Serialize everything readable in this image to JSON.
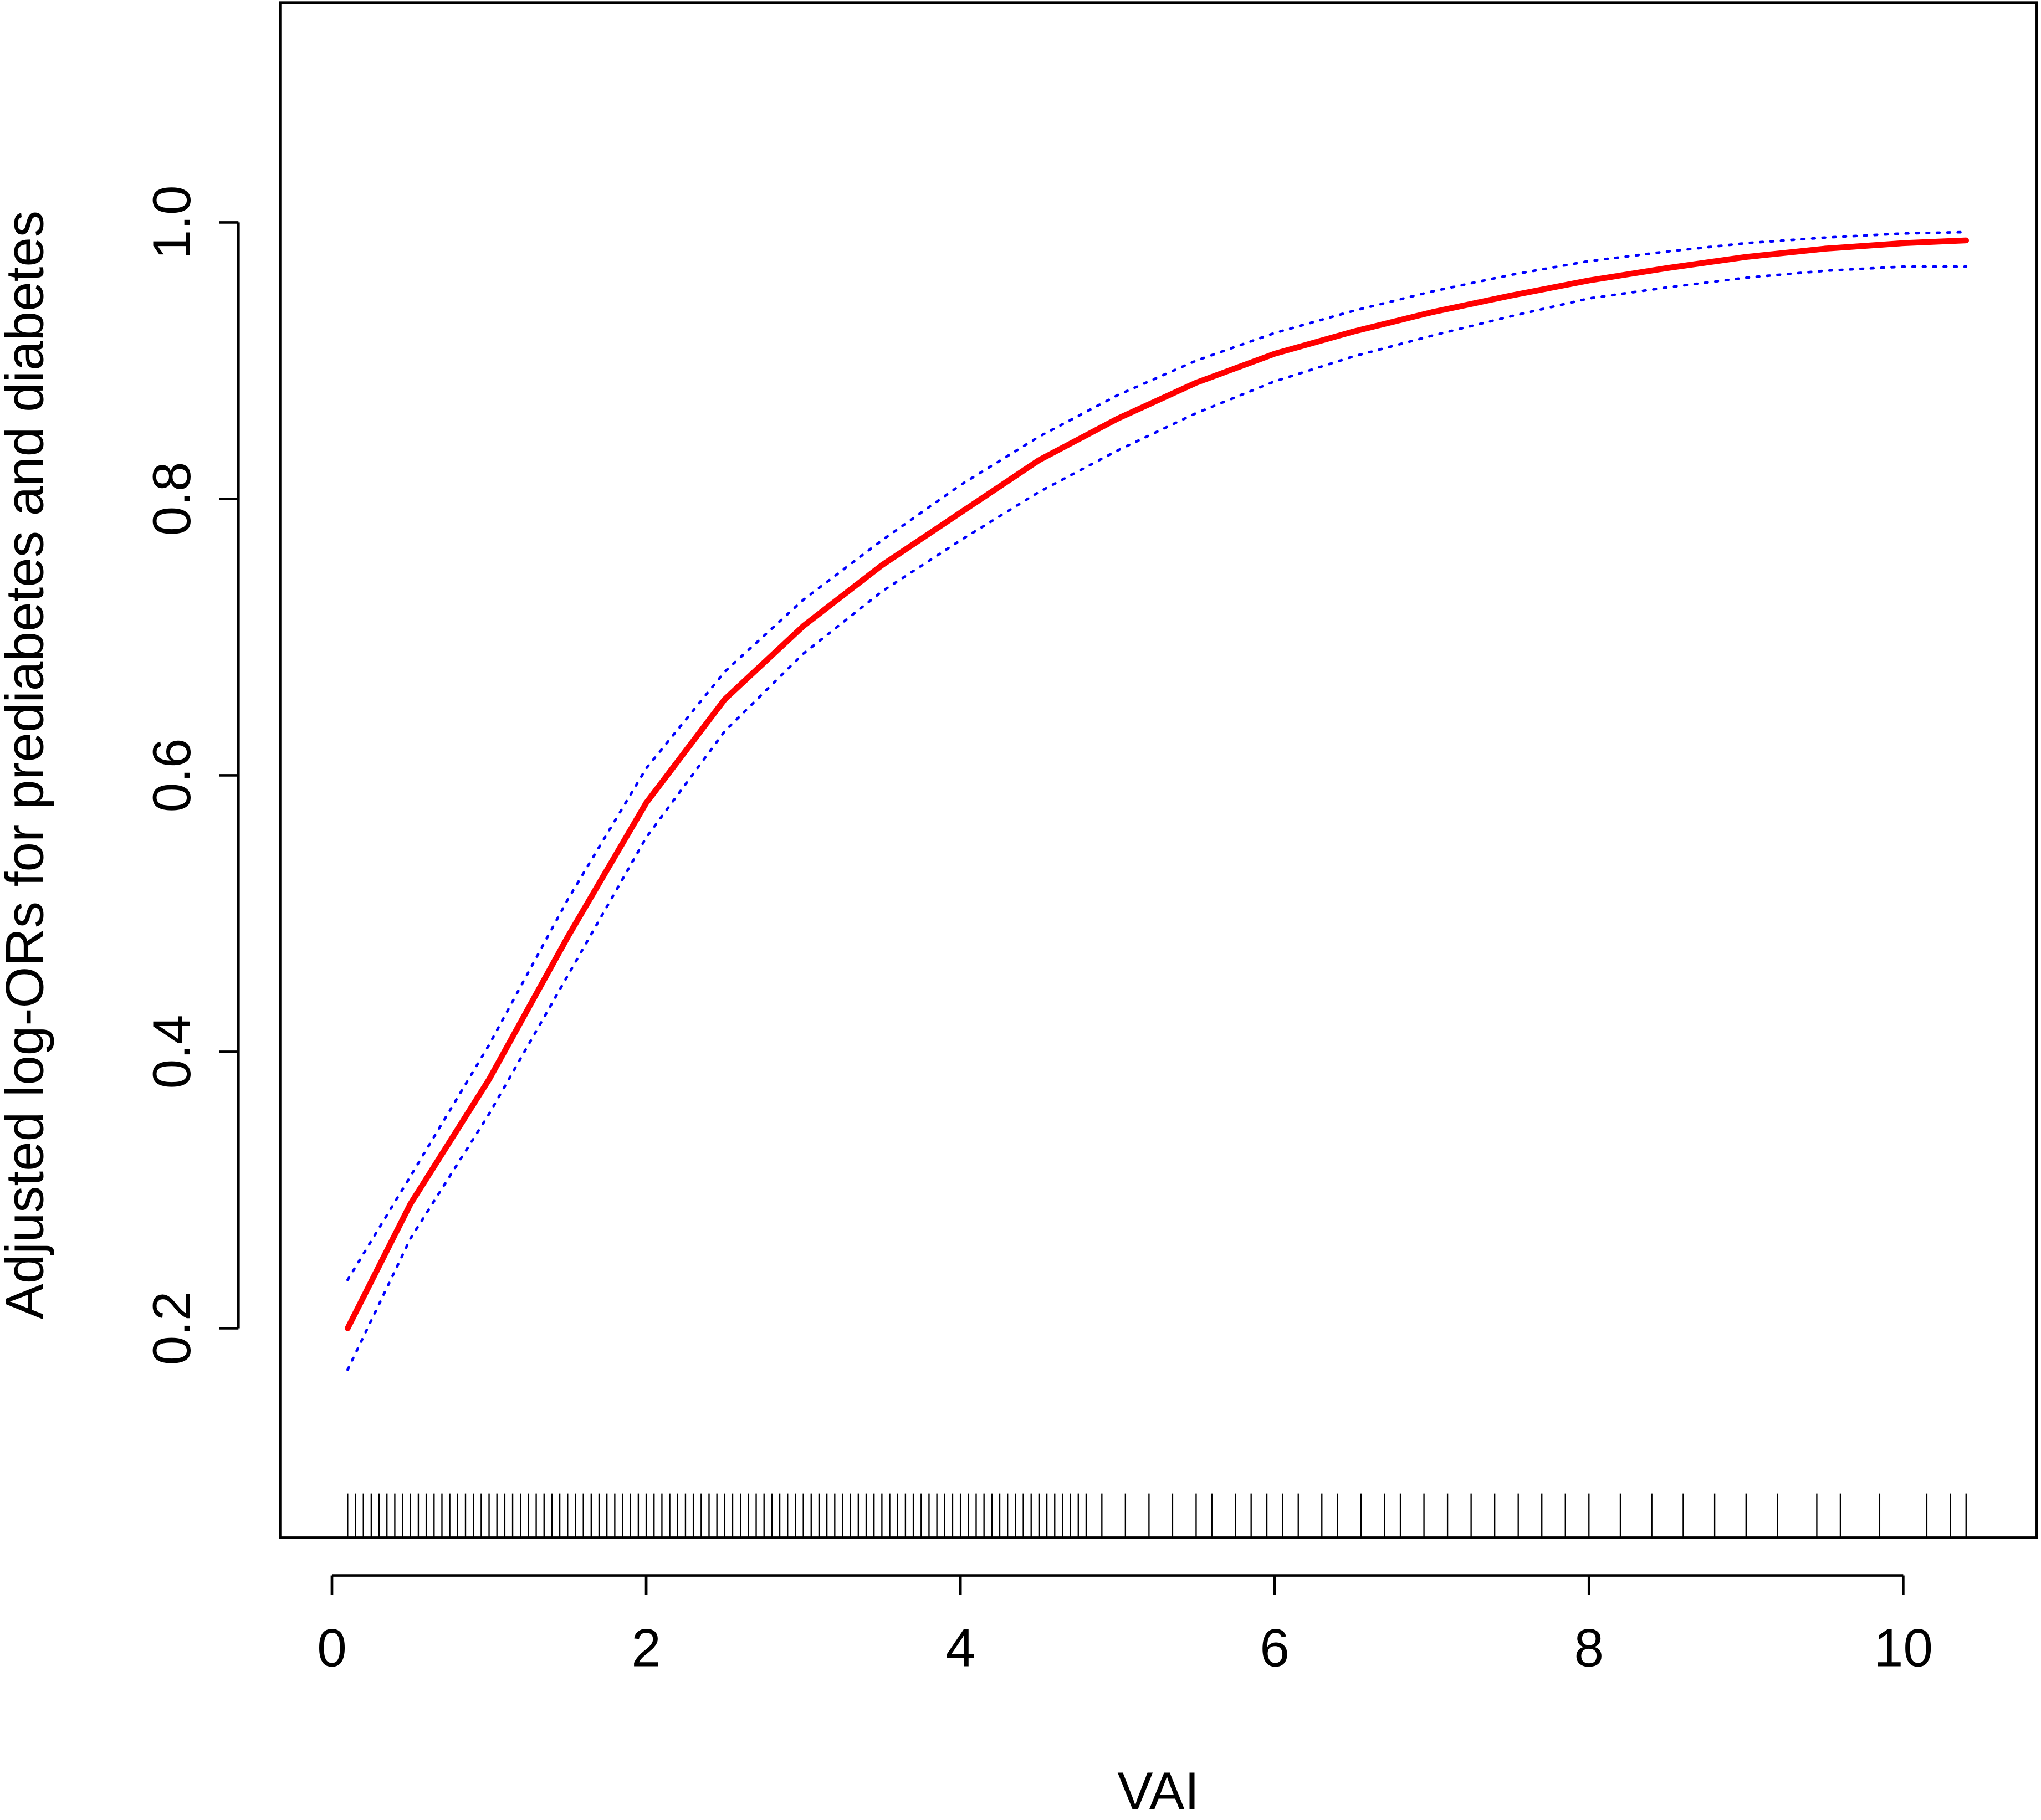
{
  "chart_data": {
    "type": "line",
    "xlabel": "VAI",
    "ylabel": "Adjusted log-ORs for prediabetes and diabetes",
    "x": [
      0.1,
      0.5,
      1,
      1.5,
      2,
      2.5,
      3,
      3.5,
      4,
      4.5,
      5,
      5.5,
      6,
      6.5,
      7,
      7.5,
      8,
      8.5,
      9,
      9.5,
      10,
      10.4
    ],
    "series": [
      {
        "color": "#ff0000",
        "style": "solid",
        "values": [
          0.2,
          0.29,
          0.38,
          0.483,
          0.58,
          0.655,
          0.708,
          0.752,
          0.79,
          0.828,
          0.858,
          0.884,
          0.905,
          0.921,
          0.935,
          0.947,
          0.958,
          0.967,
          0.975,
          0.981,
          0.985,
          0.987
        ]
      },
      {
        "color": "#0000ff",
        "style": "dotted",
        "values": [
          0.235,
          0.31,
          0.405,
          0.51,
          0.605,
          0.675,
          0.727,
          0.77,
          0.81,
          0.845,
          0.875,
          0.9,
          0.92,
          0.936,
          0.95,
          0.962,
          0.972,
          0.979,
          0.985,
          0.989,
          0.992,
          0.993
        ]
      },
      {
        "color": "#0000ff",
        "style": "dotted",
        "values": [
          0.17,
          0.265,
          0.355,
          0.455,
          0.555,
          0.632,
          0.688,
          0.733,
          0.77,
          0.805,
          0.835,
          0.862,
          0.885,
          0.903,
          0.918,
          0.932,
          0.945,
          0.953,
          0.96,
          0.965,
          0.968,
          0.968
        ]
      }
    ],
    "rug": [
      0.1,
      0.15,
      0.2,
      0.25,
      0.3,
      0.35,
      0.4,
      0.45,
      0.5,
      0.55,
      0.6,
      0.65,
      0.7,
      0.75,
      0.8,
      0.85,
      0.9,
      0.95,
      1,
      1.05,
      1.1,
      1.15,
      1.2,
      1.25,
      1.3,
      1.35,
      1.4,
      1.45,
      1.5,
      1.55,
      1.6,
      1.65,
      1.7,
      1.75,
      1.8,
      1.85,
      1.9,
      1.95,
      2,
      2.05,
      2.1,
      2.15,
      2.2,
      2.25,
      2.3,
      2.35,
      2.4,
      2.45,
      2.5,
      2.55,
      2.6,
      2.65,
      2.7,
      2.75,
      2.8,
      2.85,
      2.9,
      2.95,
      3,
      3.05,
      3.1,
      3.15,
      3.2,
      3.25,
      3.3,
      3.35,
      3.4,
      3.45,
      3.5,
      3.55,
      3.6,
      3.65,
      3.7,
      3.75,
      3.8,
      3.85,
      3.9,
      3.95,
      4,
      4.05,
      4.1,
      4.15,
      4.2,
      4.25,
      4.3,
      4.35,
      4.4,
      4.45,
      4.5,
      4.55,
      4.6,
      4.65,
      4.7,
      4.75,
      4.8,
      4.9,
      5.05,
      5.2,
      5.35,
      5.5,
      5.6,
      5.75,
      5.85,
      5.95,
      6.05,
      6.15,
      6.3,
      6.4,
      6.55,
      6.7,
      6.8,
      6.95,
      7.1,
      7.25,
      7.4,
      7.55,
      7.7,
      7.85,
      8,
      8.2,
      8.4,
      8.6,
      8.8,
      9,
      9.2,
      9.45,
      9.6,
      9.85,
      10.15,
      10.3,
      10.4
    ],
    "xlim": [
      -0.33,
      10.85
    ],
    "ylim": [
      0.0485,
      1.159
    ],
    "xticks": [
      0,
      2,
      4,
      6,
      8,
      10
    ],
    "yticks": [
      0.2,
      0.4,
      0.6,
      0.8,
      {
        "value": 1,
        "label": "1.0"
      }
    ]
  }
}
